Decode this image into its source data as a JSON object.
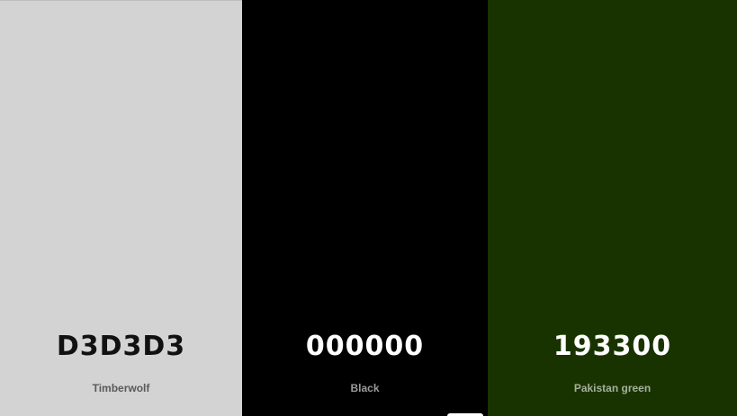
{
  "swatches": [
    {
      "hex": "D3D3D3",
      "name": "Timberwolf",
      "background": "#D3D3D3",
      "hex_color": "#111111",
      "name_color": "#5a5a5a"
    },
    {
      "hex": "000000",
      "name": "Black",
      "background": "#000000",
      "hex_color": "#ffffff",
      "name_color": "#9a9a9a"
    },
    {
      "hex": "193300",
      "name": "Pakistan green",
      "background": "#193300",
      "hex_color": "#ffffff",
      "name_color": "#a6b09a"
    }
  ]
}
